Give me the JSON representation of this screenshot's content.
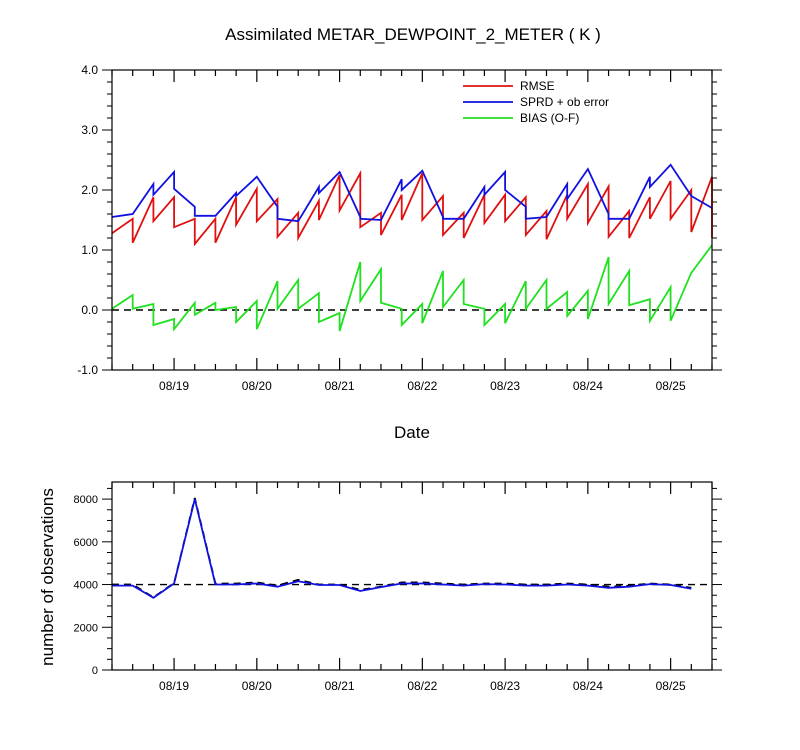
{
  "chart_data": [
    {
      "type": "line",
      "title": "Assimilated METAR_DEWPOINT_2_METER ( K )",
      "xlabel": "Date",
      "ylabel": "",
      "xlim": [
        0,
        7.25
      ],
      "ylim": [
        -1.0,
        4.0
      ],
      "y_ticks": [
        "-1.0",
        "0.0",
        "1.0",
        "2.0",
        "3.0",
        "4.0"
      ],
      "x_ticks": [
        {
          "x": 0.75,
          "label": "08/19"
        },
        {
          "x": 1.75,
          "label": "08/20"
        },
        {
          "x": 2.75,
          "label": "08/21"
        },
        {
          "x": 3.75,
          "label": "08/22"
        },
        {
          "x": 4.75,
          "label": "08/23"
        },
        {
          "x": 5.75,
          "label": "08/24"
        },
        {
          "x": 6.75,
          "label": "08/25"
        }
      ],
      "legend_position": "top-right",
      "reference_line": {
        "y": 0.0,
        "style": "dashed"
      },
      "series": [
        {
          "name": "RMSE",
          "color": "#e01010",
          "points": [
            [
              0,
              1.28
            ],
            [
              0.25,
              1.52
            ],
            [
              0.25,
              1.12
            ],
            [
              0.5,
              1.88
            ],
            [
              0.5,
              1.48
            ],
            [
              0.75,
              1.88
            ],
            [
              0.75,
              1.38
            ],
            [
              1.0,
              1.52
            ],
            [
              1.0,
              1.1
            ],
            [
              1.25,
              1.52
            ],
            [
              1.25,
              1.12
            ],
            [
              1.5,
              1.88
            ],
            [
              1.5,
              1.42
            ],
            [
              1.75,
              2.02
            ],
            [
              1.75,
              1.48
            ],
            [
              2.0,
              1.85
            ],
            [
              2.0,
              1.22
            ],
            [
              2.25,
              1.62
            ],
            [
              2.25,
              1.2
            ],
            [
              2.5,
              1.82
            ],
            [
              2.5,
              1.5
            ],
            [
              2.75,
              2.25
            ],
            [
              2.75,
              1.66
            ],
            [
              3.0,
              2.28
            ],
            [
              3.0,
              1.38
            ],
            [
              3.25,
              1.62
            ],
            [
              3.25,
              1.25
            ],
            [
              3.5,
              1.92
            ],
            [
              3.5,
              1.5
            ],
            [
              3.75,
              2.28
            ],
            [
              3.75,
              1.5
            ],
            [
              4.0,
              1.9
            ],
            [
              4.0,
              1.25
            ],
            [
              4.25,
              1.62
            ],
            [
              4.25,
              1.2
            ],
            [
              4.5,
              1.92
            ],
            [
              4.5,
              1.45
            ],
            [
              4.75,
              1.92
            ],
            [
              4.75,
              1.48
            ],
            [
              5.0,
              1.88
            ],
            [
              5.0,
              1.25
            ],
            [
              5.25,
              1.65
            ],
            [
              5.25,
              1.18
            ],
            [
              5.5,
              1.92
            ],
            [
              5.5,
              1.52
            ],
            [
              5.75,
              2.1
            ],
            [
              5.75,
              1.45
            ],
            [
              6.0,
              2.06
            ],
            [
              6.0,
              1.22
            ],
            [
              6.25,
              1.65
            ],
            [
              6.25,
              1.2
            ],
            [
              6.5,
              1.88
            ],
            [
              6.5,
              1.52
            ],
            [
              6.75,
              2.15
            ],
            [
              6.75,
              1.52
            ],
            [
              7.0,
              2.0
            ],
            [
              7.0,
              1.3
            ],
            [
              7.25,
              2.22
            ],
            [
              7.25,
              1.2
            ]
          ]
        },
        {
          "name": "SPRD + ob error",
          "color": "#1010e0",
          "points": [
            [
              0,
              1.55
            ],
            [
              0.25,
              1.6
            ],
            [
              0.5,
              2.1
            ],
            [
              0.5,
              1.92
            ],
            [
              0.75,
              2.3
            ],
            [
              0.75,
              2.02
            ],
            [
              1.0,
              1.72
            ],
            [
              1.0,
              1.57
            ],
            [
              1.25,
              1.57
            ],
            [
              1.5,
              1.95
            ],
            [
              1.5,
              1.9
            ],
            [
              1.75,
              2.22
            ],
            [
              2.0,
              1.72
            ],
            [
              2.0,
              1.52
            ],
            [
              2.25,
              1.48
            ],
            [
              2.5,
              2.05
            ],
            [
              2.5,
              1.95
            ],
            [
              2.75,
              2.3
            ],
            [
              3.0,
              1.55
            ],
            [
              3.0,
              1.52
            ],
            [
              3.25,
              1.5
            ],
            [
              3.5,
              2.18
            ],
            [
              3.5,
              2.0
            ],
            [
              3.75,
              2.32
            ],
            [
              4.0,
              1.55
            ],
            [
              4.0,
              1.52
            ],
            [
              4.25,
              1.52
            ],
            [
              4.5,
              2.05
            ],
            [
              4.5,
              1.92
            ],
            [
              4.75,
              2.3
            ],
            [
              4.75,
              2.0
            ],
            [
              5.0,
              1.72
            ],
            [
              5.0,
              1.52
            ],
            [
              5.25,
              1.55
            ],
            [
              5.5,
              2.1
            ],
            [
              5.5,
              1.85
            ],
            [
              5.75,
              2.35
            ],
            [
              6.0,
              1.6
            ],
            [
              6.0,
              1.52
            ],
            [
              6.25,
              1.52
            ],
            [
              6.5,
              2.22
            ],
            [
              6.5,
              2.05
            ],
            [
              6.75,
              2.42
            ],
            [
              7.0,
              1.9
            ],
            [
              7.25,
              1.7
            ]
          ]
        },
        {
          "name": "BIAS (O-F)",
          "color": "#20e020",
          "points": [
            [
              0,
              0.02
            ],
            [
              0.25,
              0.25
            ],
            [
              0.25,
              0.02
            ],
            [
              0.5,
              0.1
            ],
            [
              0.5,
              -0.25
            ],
            [
              0.75,
              -0.15
            ],
            [
              0.75,
              -0.32
            ],
            [
              1.0,
              0.12
            ],
            [
              1.0,
              -0.08
            ],
            [
              1.25,
              0.12
            ],
            [
              1.25,
              0.0
            ],
            [
              1.5,
              0.05
            ],
            [
              1.5,
              -0.2
            ],
            [
              1.75,
              0.15
            ],
            [
              1.75,
              -0.32
            ],
            [
              2.0,
              0.48
            ],
            [
              2.0,
              0.02
            ],
            [
              2.25,
              0.5
            ],
            [
              2.25,
              0.02
            ],
            [
              2.5,
              0.28
            ],
            [
              2.5,
              -0.2
            ],
            [
              2.75,
              -0.05
            ],
            [
              2.75,
              -0.35
            ],
            [
              3.0,
              0.8
            ],
            [
              3.0,
              0.15
            ],
            [
              3.25,
              0.68
            ],
            [
              3.25,
              0.12
            ],
            [
              3.5,
              0.02
            ],
            [
              3.5,
              -0.25
            ],
            [
              3.75,
              0.1
            ],
            [
              3.75,
              -0.22
            ],
            [
              4.0,
              0.65
            ],
            [
              4.0,
              0.05
            ],
            [
              4.25,
              0.5
            ],
            [
              4.25,
              0.1
            ],
            [
              4.5,
              0.02
            ],
            [
              4.5,
              -0.25
            ],
            [
              4.75,
              0.1
            ],
            [
              4.75,
              -0.22
            ],
            [
              5.0,
              0.48
            ],
            [
              5.0,
              0.02
            ],
            [
              5.25,
              0.5
            ],
            [
              5.25,
              0.02
            ],
            [
              5.5,
              0.3
            ],
            [
              5.5,
              -0.1
            ],
            [
              5.75,
              0.32
            ],
            [
              5.75,
              -0.15
            ],
            [
              6.0,
              0.88
            ],
            [
              6.0,
              0.1
            ],
            [
              6.25,
              0.65
            ],
            [
              6.25,
              0.08
            ],
            [
              6.5,
              0.18
            ],
            [
              6.5,
              -0.18
            ],
            [
              6.75,
              0.38
            ],
            [
              6.75,
              -0.18
            ],
            [
              7.0,
              0.62
            ],
            [
              7.25,
              1.08
            ]
          ]
        }
      ]
    },
    {
      "type": "line",
      "title": "",
      "xlabel": "",
      "ylabel": "number of observations",
      "xlim": [
        0,
        7.25
      ],
      "ylim": [
        0,
        8800
      ],
      "y_ticks": [
        "0",
        "2000",
        "4000",
        "6000",
        "8000"
      ],
      "x_ticks": [
        {
          "x": 0.75,
          "label": "08/19"
        },
        {
          "x": 1.75,
          "label": "08/20"
        },
        {
          "x": 2.75,
          "label": "08/21"
        },
        {
          "x": 3.75,
          "label": "08/22"
        },
        {
          "x": 4.75,
          "label": "08/23"
        },
        {
          "x": 5.75,
          "label": "08/24"
        },
        {
          "x": 6.75,
          "label": "08/25"
        }
      ],
      "reference_line": {
        "y": 4000,
        "style": "dashed"
      },
      "series": [
        {
          "color": "#000000",
          "style": "dashed",
          "points": [
            [
              0,
              4000
            ],
            [
              0.25,
              4000
            ],
            [
              0.5,
              3400
            ],
            [
              0.75,
              4070
            ],
            [
              1.0,
              8050
            ],
            [
              1.25,
              4050
            ],
            [
              1.5,
              4050
            ],
            [
              1.75,
              4100
            ],
            [
              2.0,
              3950
            ],
            [
              2.25,
              4220
            ],
            [
              2.5,
              4000
            ],
            [
              2.75,
              4000
            ],
            [
              3.0,
              3750
            ],
            [
              3.25,
              3900
            ],
            [
              3.5,
              4100
            ],
            [
              3.75,
              4100
            ],
            [
              4.0,
              4050
            ],
            [
              4.25,
              4000
            ],
            [
              4.5,
              4050
            ],
            [
              4.75,
              4050
            ],
            [
              5.0,
              4000
            ],
            [
              5.25,
              4000
            ],
            [
              5.5,
              4050
            ],
            [
              5.75,
              4000
            ],
            [
              6.0,
              3900
            ],
            [
              6.25,
              3950
            ],
            [
              6.5,
              4050
            ],
            [
              6.75,
              4000
            ],
            [
              7.0,
              3850
            ]
          ]
        },
        {
          "color": "#1010e0",
          "style": "solid",
          "points": [
            [
              0,
              3950
            ],
            [
              0.25,
              3950
            ],
            [
              0.5,
              3380
            ],
            [
              0.75,
              4050
            ],
            [
              1.0,
              8000
            ],
            [
              1.25,
              4000
            ],
            [
              1.5,
              4000
            ],
            [
              1.75,
              4050
            ],
            [
              2.0,
              3900
            ],
            [
              2.25,
              4150
            ],
            [
              2.5,
              3980
            ],
            [
              2.75,
              3980
            ],
            [
              3.0,
              3700
            ],
            [
              3.25,
              3880
            ],
            [
              3.5,
              4050
            ],
            [
              3.75,
              4050
            ],
            [
              4.0,
              4000
            ],
            [
              4.25,
              3950
            ],
            [
              4.5,
              4020
            ],
            [
              4.75,
              4000
            ],
            [
              5.0,
              3950
            ],
            [
              5.25,
              3950
            ],
            [
              5.5,
              4000
            ],
            [
              5.75,
              3950
            ],
            [
              6.0,
              3850
            ],
            [
              6.25,
              3900
            ],
            [
              6.5,
              4020
            ],
            [
              6.75,
              3980
            ],
            [
              7.0,
              3800
            ]
          ]
        }
      ]
    }
  ]
}
